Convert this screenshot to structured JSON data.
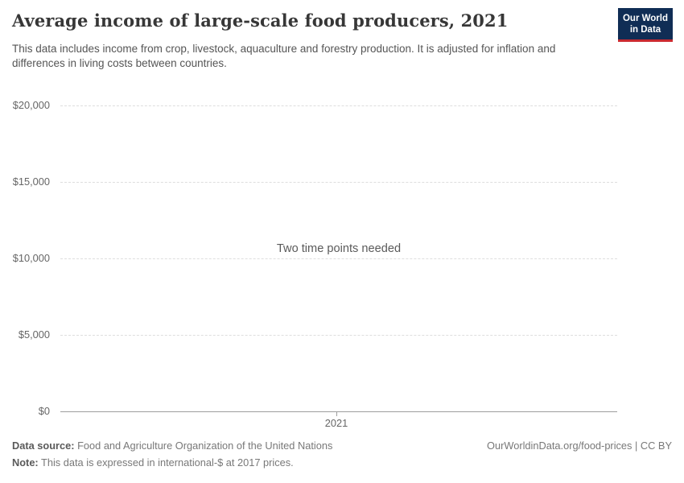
{
  "header": {
    "title": "Average income of large-scale food producers, 2021",
    "subtitle": "This data includes income from crop, livestock, aquaculture and forestry production. It is adjusted for inflation and differences in living costs between countries.",
    "logo": {
      "line1": "Our World",
      "line2": "in Data"
    }
  },
  "chart_data": {
    "type": "line",
    "title": "Average income of large-scale food producers, 2021",
    "series": [],
    "empty_message": "Two time points needed",
    "x_ticks": [
      "2021"
    ],
    "y_ticks": [
      "$0",
      "$5,000",
      "$10,000",
      "$15,000",
      "$20,000"
    ],
    "y_tick_values": [
      0,
      5000,
      10000,
      15000,
      20000
    ],
    "ylim": [
      0,
      20000
    ],
    "xlabel": "",
    "ylabel": "",
    "grid": "horizontal-dashed",
    "legend": "none"
  },
  "footer": {
    "data_source_label": "Data source:",
    "data_source_value": "Food and Agriculture Organization of the United Nations",
    "note_label": "Note:",
    "note_value": "This data is expressed in international-$ at 2017 prices.",
    "link": "OurWorldinData.org/food-prices | CC BY"
  },
  "colors": {
    "logo_bg": "#102D55",
    "logo_stripe": "#CA2A30",
    "grid": "#dedede",
    "axis": "#9e9e9e",
    "muted_text": "#666666"
  }
}
